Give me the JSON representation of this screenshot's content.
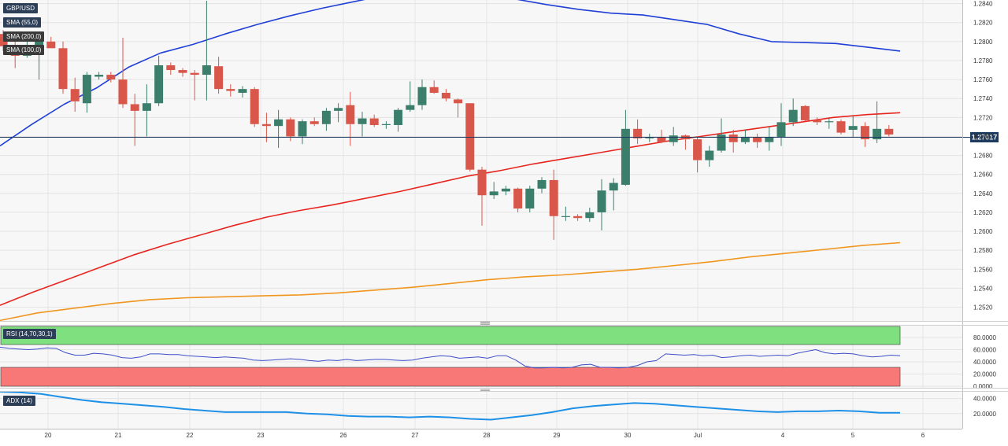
{
  "legend": {
    "symbol": "GBP/USD",
    "sma55": "SMA (55,0)",
    "sma200": "SMA (200,0)",
    "sma100": "SMA (100,0)",
    "rsi": "RSI (14,70,30,1)",
    "adx": "ADX (14)"
  },
  "colors": {
    "bull": "#3c7e6c",
    "bear": "#d9574a",
    "sma55": "#1f3fd6",
    "sma100": "#e8241e",
    "sma200": "#f0961e",
    "rsi_line": "#3d4fc8",
    "adx_line": "#1e90e6",
    "rsi_overbought": "#7ee07e",
    "rsi_oversold": "#f87878"
  },
  "chart_data": [
    {
      "type": "candlestick",
      "title": "GBP/USD",
      "ylim": [
        1.2508,
        1.2843
      ],
      "y_ticks": [
        "1.2840",
        "1.2820",
        "1.2800",
        "1.2780",
        "1.2760",
        "1.2740",
        "1.2720",
        "1.2700",
        "1.2680",
        "1.2660",
        "1.2640",
        "1.2620",
        "1.2600",
        "1.2580",
        "1.2560",
        "1.2540",
        "1.2520"
      ],
      "x_ticks": [
        "20",
        "21",
        "22",
        "23",
        "26",
        "27",
        "28",
        "29",
        "30",
        "Jul",
        "4",
        "5",
        "6"
      ],
      "current_price": "1.27017",
      "candles": [
        [
          1.2808,
          1.2812,
          1.279,
          1.2795
        ],
        [
          1.2795,
          1.28,
          1.2772,
          1.2785
        ],
        [
          1.2785,
          1.2808,
          1.2783,
          1.2795
        ],
        [
          1.2795,
          1.2802,
          1.276,
          1.28
        ],
        [
          1.28,
          1.2805,
          1.2795,
          1.2793
        ],
        [
          1.2793,
          1.28,
          1.2745,
          1.275
        ],
        [
          1.275,
          1.2762,
          1.2726,
          1.2737
        ],
        [
          1.2735,
          1.2768,
          1.2725,
          1.2765
        ],
        [
          1.2763,
          1.2768,
          1.276,
          1.2765
        ],
        [
          1.2765,
          1.2768,
          1.2757,
          1.276
        ],
        [
          1.276,
          1.2804,
          1.273,
          1.2734
        ],
        [
          1.2734,
          1.2745,
          1.269,
          1.2727
        ],
        [
          1.2727,
          1.2755,
          1.27,
          1.2735
        ],
        [
          1.2735,
          1.2785,
          1.2732,
          1.2775
        ],
        [
          1.2775,
          1.2778,
          1.2765,
          1.277
        ],
        [
          1.277,
          1.2772,
          1.2763,
          1.2767
        ],
        [
          1.2767,
          1.277,
          1.2738,
          1.2765
        ],
        [
          1.2765,
          1.2843,
          1.2738,
          1.2775
        ],
        [
          1.2774,
          1.2784,
          1.2745,
          1.275
        ],
        [
          1.275,
          1.2755,
          1.2742,
          1.2748
        ],
        [
          1.2746,
          1.2753,
          1.2741,
          1.275
        ],
        [
          1.275,
          1.2752,
          1.271,
          1.2713
        ],
        [
          1.2713,
          1.2725,
          1.2694,
          1.2711
        ],
        [
          1.2711,
          1.2728,
          1.2688,
          1.2718
        ],
        [
          1.2718,
          1.272,
          1.2695,
          1.27
        ],
        [
          1.27,
          1.2718,
          1.2692,
          1.2716
        ],
        [
          1.2716,
          1.272,
          1.2711,
          1.2713
        ],
        [
          1.2713,
          1.273,
          1.2706,
          1.2727
        ],
        [
          1.2727,
          1.2735,
          1.2715,
          1.273
        ],
        [
          1.2733,
          1.2747,
          1.269,
          1.2713
        ],
        [
          1.2713,
          1.2726,
          1.27,
          1.2719
        ],
        [
          1.2719,
          1.2723,
          1.271,
          1.2712
        ],
        [
          1.2712,
          1.2716,
          1.2708,
          1.2713
        ],
        [
          1.2712,
          1.273,
          1.2705,
          1.2728
        ],
        [
          1.2728,
          1.2758,
          1.2726,
          1.2733
        ],
        [
          1.2733,
          1.276,
          1.2728,
          1.2752
        ],
        [
          1.2752,
          1.2759,
          1.2745,
          1.2746
        ],
        [
          1.2746,
          1.275,
          1.2737,
          1.274
        ],
        [
          1.2739,
          1.274,
          1.272,
          1.2735
        ],
        [
          1.2735,
          1.2735,
          1.2663,
          1.2665
        ],
        [
          1.2665,
          1.2668,
          1.2606,
          1.2638
        ],
        [
          1.2638,
          1.2652,
          1.2634,
          1.2642
        ],
        [
          1.2642,
          1.2648,
          1.2638,
          1.2645
        ],
        [
          1.2645,
          1.2646,
          1.262,
          1.2624
        ],
        [
          1.2624,
          1.2648,
          1.262,
          1.2645
        ],
        [
          1.2645,
          1.2657,
          1.264,
          1.2654
        ],
        [
          1.2654,
          1.2665,
          1.2591,
          1.2616
        ],
        [
          1.2616,
          1.2626,
          1.2611,
          1.2616
        ],
        [
          1.2616,
          1.2618,
          1.2611,
          1.2614
        ],
        [
          1.2614,
          1.2625,
          1.261,
          1.262
        ],
        [
          1.262,
          1.2655,
          1.2601,
          1.2643
        ],
        [
          1.2643,
          1.2656,
          1.2622,
          1.2651
        ],
        [
          1.2649,
          1.2728,
          1.2648,
          1.2708
        ],
        [
          1.2708,
          1.2718,
          1.2692,
          1.2698
        ],
        [
          1.2698,
          1.2703,
          1.2694,
          1.2699
        ],
        [
          1.2699,
          1.2707,
          1.2693,
          1.2694
        ],
        [
          1.2694,
          1.271,
          1.269,
          1.2701
        ],
        [
          1.2701,
          1.2702,
          1.2686,
          1.2697
        ],
        [
          1.2697,
          1.27,
          1.2662,
          1.2675
        ],
        [
          1.2675,
          1.269,
          1.2668,
          1.2685
        ],
        [
          1.2685,
          1.2719,
          1.2683,
          1.2702
        ],
        [
          1.2702,
          1.2707,
          1.2683,
          1.2694
        ],
        [
          1.2694,
          1.2707,
          1.2692,
          1.2699
        ],
        [
          1.2699,
          1.2703,
          1.2688,
          1.2694
        ],
        [
          1.2694,
          1.271,
          1.2685,
          1.2699
        ],
        [
          1.2699,
          1.2735,
          1.269,
          1.2715
        ],
        [
          1.2715,
          1.274,
          1.2711,
          1.2728
        ],
        [
          1.2732,
          1.2733,
          1.2716,
          1.2717
        ],
        [
          1.2717,
          1.272,
          1.2712,
          1.2715
        ],
        [
          1.2715,
          1.2719,
          1.2708,
          1.2716
        ],
        [
          1.2716,
          1.2718,
          1.2702,
          1.2704
        ],
        [
          1.2707,
          1.2722,
          1.2699,
          1.2711
        ],
        [
          1.2711,
          1.2715,
          1.2689,
          1.2697
        ],
        [
          1.2697,
          1.2737,
          1.2693,
          1.2708
        ],
        [
          1.2708,
          1.2712,
          1.27,
          1.2702
        ]
      ],
      "series": [
        {
          "name": "SMA (55,0)",
          "values": [
            1.269,
            1.2713,
            1.2734,
            1.2751,
            1.2773,
            1.2788,
            1.2797,
            1.2808,
            1.2818,
            1.2827,
            1.2835,
            1.2842,
            1.2849,
            1.2852,
            1.2853,
            1.285,
            1.2845,
            1.2839,
            1.2834,
            1.283,
            1.2828,
            1.2823,
            1.2818,
            1.2808,
            1.28,
            1.2799,
            1.2798,
            1.2794,
            1.279
          ]
        },
        {
          "name": "SMA (100,0)",
          "values": [
            1.2522,
            1.2536,
            1.2549,
            1.2562,
            1.2575,
            1.2586,
            1.2596,
            1.2606,
            1.2615,
            1.2622,
            1.2628,
            1.2635,
            1.2642,
            1.265,
            1.2658,
            1.2664,
            1.2671,
            1.2677,
            1.2683,
            1.2689,
            1.2695,
            1.27,
            1.2705,
            1.271,
            1.2715,
            1.272,
            1.2723,
            1.2725
          ]
        },
        {
          "name": "SMA (200,0)",
          "values": [
            1.2506,
            1.2514,
            1.2519,
            1.2524,
            1.2528,
            1.253,
            1.2531,
            1.2532,
            1.2533,
            1.2535,
            1.2538,
            1.2541,
            1.2545,
            1.2549,
            1.2552,
            1.2554,
            1.2557,
            1.256,
            1.2564,
            1.2568,
            1.2573,
            1.2577,
            1.2581,
            1.2585,
            1.2588
          ]
        }
      ]
    },
    {
      "type": "line",
      "title": "RSI (14,70,30,1)",
      "ylim": [
        0,
        80
      ],
      "y_ticks": [
        "80.0000",
        "60.0000",
        "40.0000",
        "20.0000",
        "0.0000"
      ],
      "series": [
        {
          "name": "RSI (14,70,30,1)",
          "values": [
            64,
            62,
            61,
            60,
            61,
            63,
            62,
            55,
            51,
            51,
            54,
            53,
            51,
            47,
            46,
            48,
            53,
            53,
            52,
            52,
            50,
            49,
            48,
            47,
            48,
            47,
            46,
            43,
            42,
            43,
            44,
            45,
            44,
            42,
            41,
            43,
            42,
            44,
            42,
            43,
            44,
            44,
            43,
            42,
            43,
            46,
            48,
            50,
            49,
            46,
            47,
            48,
            46,
            50,
            50,
            43,
            33,
            30,
            30,
            31,
            30,
            31,
            35,
            36,
            31,
            31,
            30,
            31,
            34,
            40,
            42,
            53,
            52,
            51,
            52,
            50,
            51,
            47,
            48,
            50,
            51,
            49,
            50,
            51,
            50,
            54,
            57,
            60,
            55,
            53,
            54,
            53,
            50,
            48,
            49,
            51,
            50
          ]
        }
      ]
    },
    {
      "type": "line",
      "title": "ADX (14)",
      "ylim": [
        0,
        50
      ],
      "y_ticks": [
        "40.0000",
        "20.0000"
      ],
      "series": [
        {
          "name": "ADX (14)",
          "values": [
            49,
            48,
            46,
            42,
            38,
            35,
            33,
            31,
            29,
            26,
            24,
            22,
            22,
            22,
            22,
            20,
            19,
            17,
            16,
            16,
            15,
            16,
            15,
            13,
            12,
            15,
            18,
            22,
            27,
            30,
            32,
            34,
            33,
            31,
            29,
            27,
            25,
            23,
            22,
            23,
            23,
            24,
            23,
            21,
            21
          ]
        }
      ]
    }
  ]
}
